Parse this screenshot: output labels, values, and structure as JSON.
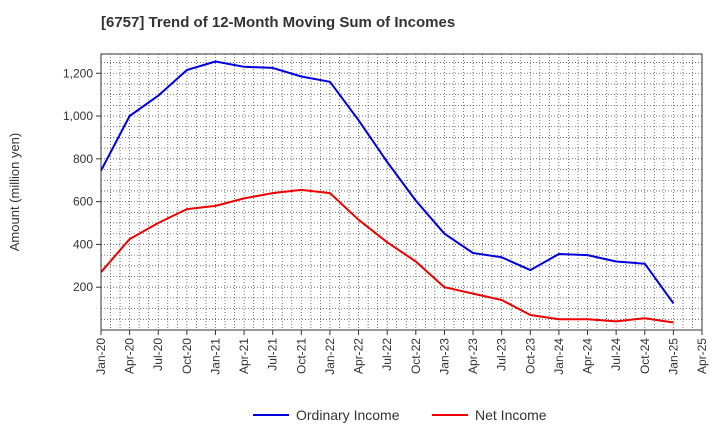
{
  "chart_data": {
    "type": "line",
    "title": "[6757]  Trend of 12-Month Moving Sum of Incomes",
    "xlabel": "",
    "ylabel": "Amount (million yen)",
    "x_tick_labels": [
      "Jan-20",
      "Apr-20",
      "Jul-20",
      "Oct-20",
      "Jan-21",
      "Apr-21",
      "Jul-21",
      "Oct-21",
      "Jan-22",
      "Apr-22",
      "Jul-22",
      "Oct-22",
      "Jan-23",
      "Apr-23",
      "Jul-23",
      "Oct-23",
      "Jan-24",
      "Apr-24",
      "Jul-24",
      "Oct-24",
      "Jan-25",
      "Apr-25"
    ],
    "y_ticks": [
      200,
      400,
      600,
      800,
      1000,
      1200
    ],
    "y_tick_labels": [
      "200",
      "400",
      "600",
      "800",
      "1,000",
      "1,200"
    ],
    "ylim": [
      0,
      1290
    ],
    "grid": true,
    "legend_position": "bottom-center",
    "series": [
      {
        "name": "Ordinary Income",
        "color": "#0000dd",
        "values": [
          745,
          1000,
          1095,
          1215,
          1255,
          1230,
          1225,
          1185,
          1160,
          980,
          785,
          605,
          450,
          360,
          340,
          280,
          355,
          350,
          320,
          310,
          125
        ]
      },
      {
        "name": "Net Income",
        "color": "#ee0000",
        "values": [
          270,
          425,
          500,
          565,
          580,
          615,
          640,
          655,
          640,
          515,
          410,
          320,
          200,
          170,
          140,
          70,
          50,
          50,
          40,
          55,
          35
        ]
      }
    ]
  }
}
